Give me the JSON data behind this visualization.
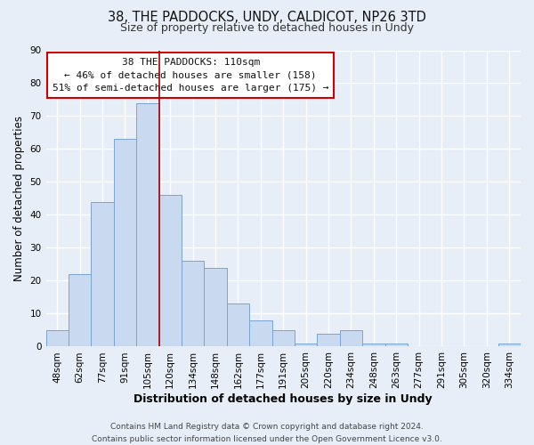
{
  "title": "38, THE PADDOCKS, UNDY, CALDICOT, NP26 3TD",
  "subtitle": "Size of property relative to detached houses in Undy",
  "xlabel": "Distribution of detached houses by size in Undy",
  "ylabel": "Number of detached properties",
  "bin_labels": [
    "48sqm",
    "62sqm",
    "77sqm",
    "91sqm",
    "105sqm",
    "120sqm",
    "134sqm",
    "148sqm",
    "162sqm",
    "177sqm",
    "191sqm",
    "205sqm",
    "220sqm",
    "234sqm",
    "248sqm",
    "263sqm",
    "277sqm",
    "291sqm",
    "305sqm",
    "320sqm",
    "334sqm"
  ],
  "bar_values": [
    5,
    22,
    44,
    63,
    74,
    46,
    26,
    24,
    13,
    8,
    5,
    1,
    4,
    5,
    1,
    1,
    0,
    0,
    0,
    0,
    1
  ],
  "bar_color": "#c9d9f0",
  "bar_edge_color": "#7aa4d4",
  "background_color": "#e8eef8",
  "grid_color": "#ffffff",
  "ylim": [
    0,
    90
  ],
  "yticks": [
    0,
    10,
    20,
    30,
    40,
    50,
    60,
    70,
    80,
    90
  ],
  "vline_x": 4.5,
  "vline_color": "#aa0000",
  "annotation_box_text": "38 THE PADDOCKS: 110sqm\n← 46% of detached houses are smaller (158)\n51% of semi-detached houses are larger (175) →",
  "annotation_box_color": "#cc0000",
  "annotation_box_bg": "#ffffff",
  "footer_line1": "Contains HM Land Registry data © Crown copyright and database right 2024.",
  "footer_line2": "Contains public sector information licensed under the Open Government Licence v3.0.",
  "title_fontsize": 10.5,
  "subtitle_fontsize": 9,
  "xlabel_fontsize": 9,
  "ylabel_fontsize": 8.5,
  "tick_fontsize": 7.5,
  "annotation_fontsize": 8,
  "footer_fontsize": 6.5
}
